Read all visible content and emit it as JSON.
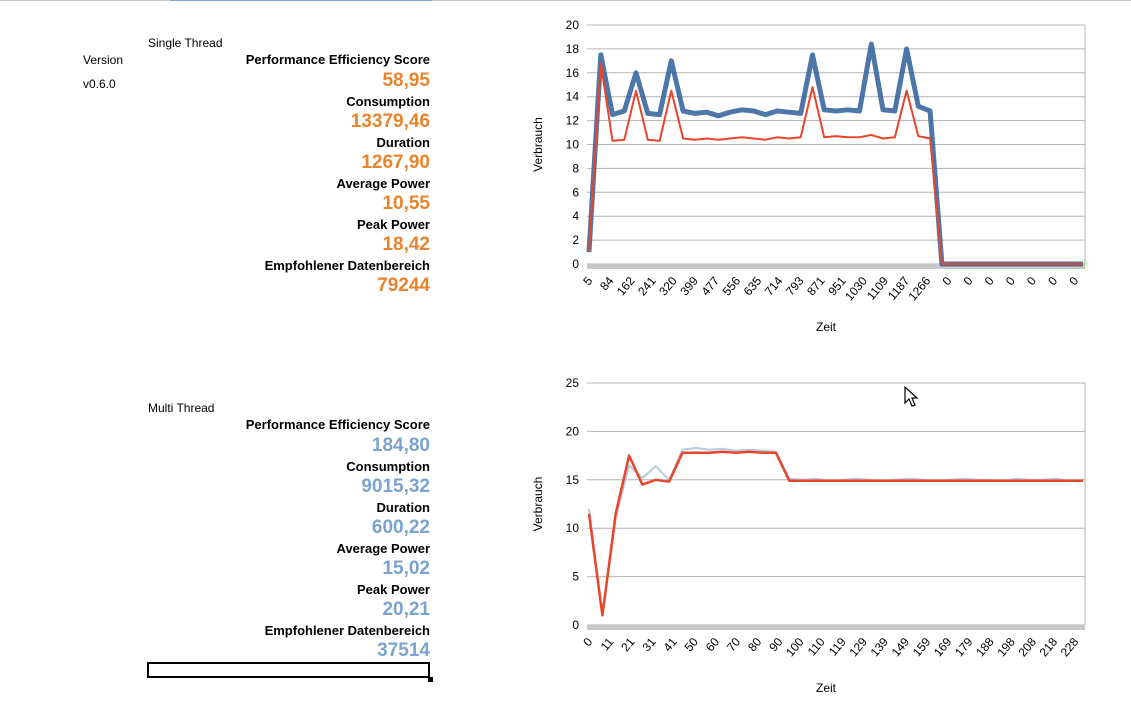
{
  "version_label": "Version",
  "version_value": "v0.6.0",
  "single": {
    "title": "Single Thread",
    "metrics": [
      {
        "label": "Performance Efficiency Score",
        "value": "58,95"
      },
      {
        "label": "Consumption",
        "value": "13379,46"
      },
      {
        "label": "Duration",
        "value": "1267,90"
      },
      {
        "label": "Average Power",
        "value": "10,55"
      },
      {
        "label": "Peak Power",
        "value": "18,42"
      },
      {
        "label": "Empfohlener Datenbereich",
        "value": "79244"
      }
    ]
  },
  "multi": {
    "title": "Multi Thread",
    "metrics": [
      {
        "label": "Performance Efficiency Score",
        "value": "184,80"
      },
      {
        "label": "Consumption",
        "value": "9015,32"
      },
      {
        "label": "Duration",
        "value": "600,22"
      },
      {
        "label": "Average Power",
        "value": "15,02"
      },
      {
        "label": "Peak Power",
        "value": "20,21"
      },
      {
        "label": "Empfohlener Datenbereich",
        "value": "37514"
      }
    ]
  },
  "colors": {
    "single_accent": "#e8842e",
    "multi_accent": "#7ca3cf",
    "raw_series": "#2e5f99",
    "raw_series_light": "#a9c1dd",
    "smooth_series": "#e8452a",
    "grid": "#b3b3b3"
  },
  "chart_data": [
    {
      "type": "line",
      "title": "",
      "xlabel": "Zeit",
      "ylabel": "Verbrauch",
      "ylim": [
        0,
        20
      ],
      "yticks": [
        0,
        2,
        4,
        6,
        8,
        10,
        12,
        14,
        16,
        18,
        20
      ],
      "grid": true,
      "xticks": [
        "5",
        "84",
        "162",
        "241",
        "320",
        "399",
        "477",
        "556",
        "635",
        "714",
        "793",
        "871",
        "951",
        "1030",
        "1109",
        "1187",
        "1266",
        "0",
        "0",
        "0",
        "0",
        "0",
        "0",
        "0"
      ],
      "series": [
        {
          "values": [
            1.0,
            17.5,
            12.5,
            12.8,
            16.0,
            12.6,
            12.5,
            17.0,
            12.8,
            12.6,
            12.7,
            12.4,
            12.7,
            12.9,
            12.8,
            12.5,
            12.8,
            12.7,
            12.6,
            17.5,
            12.9,
            12.8,
            12.9,
            12.8,
            18.4,
            12.9,
            12.8,
            18.0,
            13.2,
            12.8,
            0,
            0,
            0,
            0,
            0,
            0,
            0,
            0,
            0,
            0,
            0,
            0,
            0
          ]
        },
        {
          "values": [
            1.0,
            16.8,
            10.3,
            10.4,
            14.5,
            10.4,
            10.3,
            14.5,
            10.5,
            10.4,
            10.5,
            10.4,
            10.5,
            10.6,
            10.5,
            10.4,
            10.6,
            10.5,
            10.6,
            14.8,
            10.6,
            10.7,
            10.6,
            10.6,
            10.8,
            10.5,
            10.6,
            14.5,
            10.7,
            10.5,
            0,
            0,
            0,
            0,
            0,
            0,
            0,
            0,
            0,
            0,
            0,
            0,
            0
          ]
        }
      ]
    },
    {
      "type": "line",
      "title": "",
      "xlabel": "Zeit",
      "ylabel": "Verbrauch",
      "ylim": [
        0,
        25
      ],
      "yticks": [
        0,
        5,
        10,
        15,
        20,
        25
      ],
      "grid": true,
      "xticks": [
        "0",
        "11",
        "21",
        "31",
        "41",
        "50",
        "60",
        "70",
        "80",
        "90",
        "100",
        "110",
        "119",
        "129",
        "139",
        "149",
        "159",
        "169",
        "179",
        "188",
        "198",
        "208",
        "218",
        "228"
      ],
      "series": [
        {
          "values": [
            12.0,
            1.2,
            11.0,
            16.5,
            15.2,
            16.4,
            15.0,
            18.1,
            18.3,
            18.1,
            18.2,
            18.0,
            18.1,
            18.0,
            17.9,
            15.1,
            15.0,
            15.1,
            14.9,
            15.0,
            15.1,
            15.0,
            14.9,
            15.0,
            15.1,
            15.0,
            14.9,
            15.0,
            15.1,
            15.0,
            15.0,
            14.9,
            15.1,
            15.0,
            15.0,
            15.1,
            14.9,
            15.0
          ]
        },
        {
          "values": [
            11.5,
            1.0,
            11.5,
            17.5,
            14.5,
            15.0,
            14.8,
            17.8,
            17.8,
            17.8,
            17.9,
            17.8,
            17.9,
            17.8,
            17.8,
            14.9,
            14.9,
            14.9,
            14.9,
            14.9,
            14.9,
            14.9,
            14.9,
            14.9,
            14.9,
            14.9,
            14.9,
            14.9,
            14.9,
            14.9,
            14.9,
            14.9,
            14.9,
            14.9,
            14.9,
            14.9,
            14.9,
            14.9
          ]
        }
      ]
    }
  ]
}
